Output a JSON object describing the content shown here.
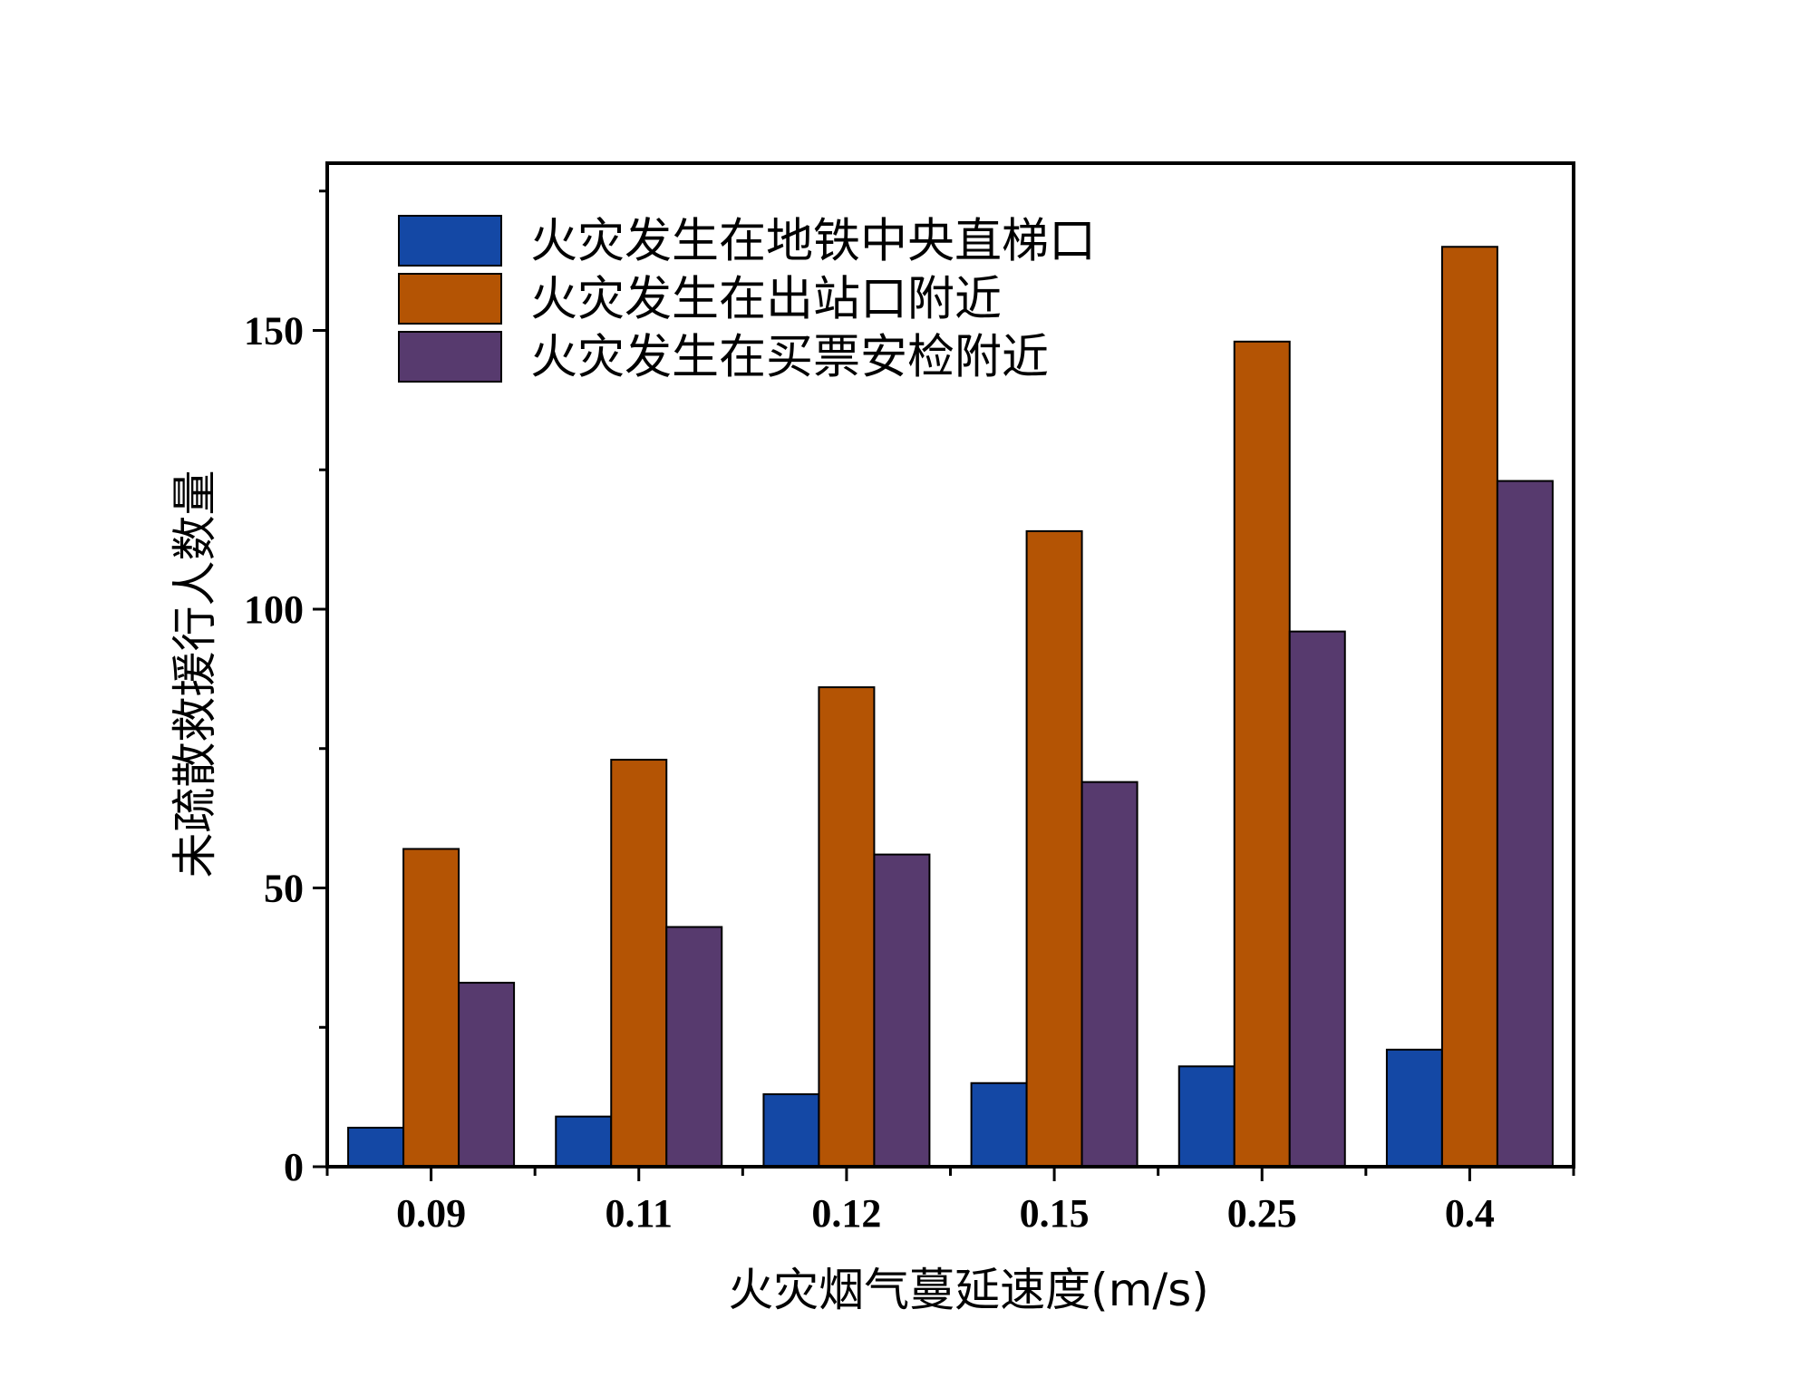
{
  "chart_data": {
    "type": "bar",
    "title": "",
    "xlabel": "火灾烟气蔓延速度(m/s)",
    "ylabel": "未疏散救援行人数量",
    "categories": [
      "0.09",
      "0.11",
      "0.12",
      "0.15",
      "0.25",
      "0.4"
    ],
    "ylim": [
      0,
      180
    ],
    "yticks": [
      0,
      50,
      100,
      150
    ],
    "yticks_minor": [
      25,
      75,
      125,
      175
    ],
    "grid": false,
    "legend_position": "top-left",
    "series": [
      {
        "name": "火灾发生在地铁中央直梯口",
        "color": "#1448a5",
        "values": [
          7,
          9,
          13,
          15,
          18,
          21
        ]
      },
      {
        "name": "火灾发生在出站口附近",
        "color": "#b45404",
        "values": [
          57,
          73,
          86,
          114,
          148,
          165
        ]
      },
      {
        "name": "火灾发生在买票安检附近",
        "color": "#573a6e",
        "values": [
          33,
          43,
          56,
          69,
          96,
          123
        ]
      }
    ]
  }
}
